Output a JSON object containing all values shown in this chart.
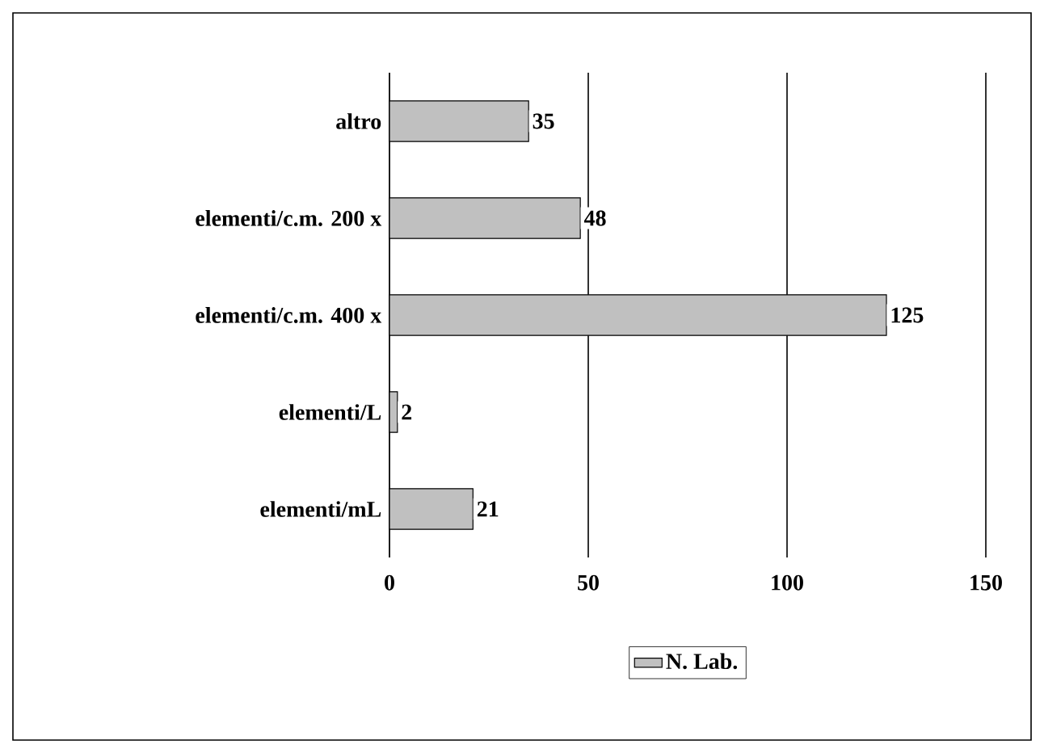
{
  "chart_data": {
    "type": "bar",
    "orientation": "horizontal",
    "categories": [
      "altro",
      "elementi/c.m. 200 x",
      "elementi/c.m. 400 x",
      "elementi/L",
      "elementi/mL"
    ],
    "series": [
      {
        "name": "N. Lab.",
        "color": "#c0c0c0",
        "values": [
          35,
          48,
          125,
          2,
          21
        ]
      }
    ],
    "xlim": [
      0,
      150
    ],
    "xticks": [
      0,
      50,
      100,
      150
    ],
    "grid": "x",
    "legend": "bottom",
    "data_labels": true
  }
}
